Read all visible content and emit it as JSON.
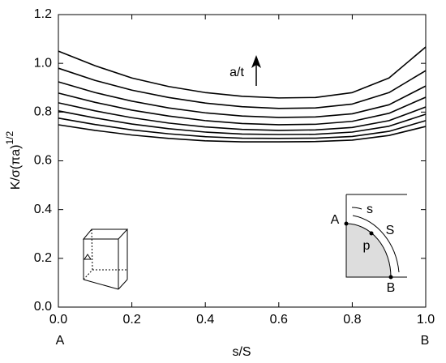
{
  "chart_data": {
    "type": "line",
    "xlabel": "s/S",
    "ylabel": "K/σ(πa)",
    "ylabel_superscript": "1/2",
    "x": [
      0,
      0.1,
      0.2,
      0.3,
      0.4,
      0.5,
      0.6,
      0.7,
      0.8,
      0.9,
      1.0
    ],
    "series": [
      {
        "color": "#000000",
        "values": [
          1.05,
          0.99,
          0.94,
          0.905,
          0.88,
          0.865,
          0.858,
          0.86,
          0.88,
          0.94,
          1.067
        ]
      },
      {
        "color": "#000000",
        "values": [
          0.98,
          0.93,
          0.89,
          0.86,
          0.837,
          0.822,
          0.815,
          0.817,
          0.833,
          0.88,
          0.97
        ]
      },
      {
        "color": "#000000",
        "values": [
          0.924,
          0.88,
          0.845,
          0.817,
          0.797,
          0.784,
          0.778,
          0.78,
          0.793,
          0.83,
          0.907
        ]
      },
      {
        "color": "#000000",
        "values": [
          0.878,
          0.84,
          0.808,
          0.784,
          0.765,
          0.753,
          0.748,
          0.75,
          0.762,
          0.795,
          0.861
        ]
      },
      {
        "color": "#000000",
        "values": [
          0.838,
          0.805,
          0.777,
          0.755,
          0.739,
          0.729,
          0.725,
          0.727,
          0.737,
          0.765,
          0.821
        ]
      },
      {
        "color": "#000000",
        "values": [
          0.805,
          0.776,
          0.751,
          0.732,
          0.718,
          0.71,
          0.708,
          0.709,
          0.718,
          0.742,
          0.791
        ]
      },
      {
        "color": "#000000",
        "values": [
          0.775,
          0.749,
          0.727,
          0.711,
          0.699,
          0.693,
          0.692,
          0.693,
          0.7,
          0.721,
          0.765
        ]
      },
      {
        "color": "#000000",
        "values": [
          0.748,
          0.725,
          0.706,
          0.692,
          0.682,
          0.678,
          0.678,
          0.679,
          0.685,
          0.704,
          0.741
        ]
      }
    ],
    "xlim": [
      0,
      1.0
    ],
    "ylim": [
      0,
      1.2
    ],
    "xticks": [
      {
        "value": 0,
        "label": "0.0"
      },
      0.2,
      0.4,
      0.6,
      0.8,
      {
        "value": 1,
        "label": "1.0"
      }
    ],
    "yticks": [
      {
        "value": 0,
        "label": "0.0"
      },
      0.2,
      0.4,
      0.6,
      0.8,
      {
        "value": 1,
        "label": "1.0"
      },
      1.2
    ],
    "x_end_labels": [
      "A",
      "B"
    ],
    "arrow_annotation": "a/t",
    "inset_labels": {
      "A": "A",
      "s": "s",
      "S": "S",
      "p": "p",
      "B": "B"
    }
  }
}
